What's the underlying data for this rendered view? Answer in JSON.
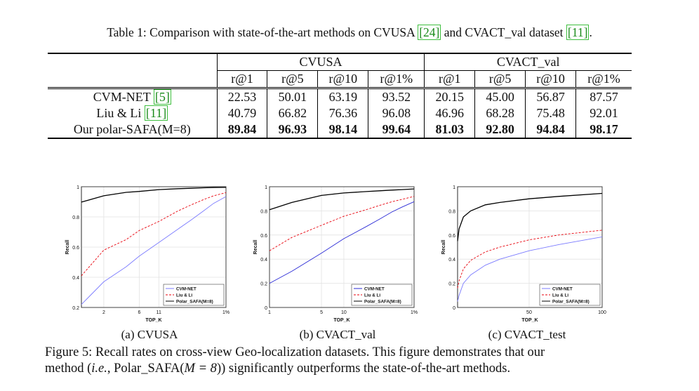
{
  "table": {
    "caption_prefix": "Table 1:",
    "caption_text_a": "Comparison with state-of-the-art methods on CVUSA ",
    "caption_cite_a": "[24]",
    "caption_text_b": " and CVACT_val dataset ",
    "caption_cite_b": "[11]",
    "caption_text_c": ".",
    "groups": [
      "CVUSA",
      "CVACT_val"
    ],
    "columns": [
      "r@1",
      "r@5",
      "r@10",
      "r@1%",
      "r@1",
      "r@5",
      "r@10",
      "r@1%"
    ],
    "rows": [
      {
        "method": "CVM-NET ",
        "cite": "[5]",
        "values": [
          "22.53",
          "50.01",
          "63.19",
          "93.52",
          "20.15",
          "45.00",
          "56.87",
          "87.57"
        ],
        "bold": false
      },
      {
        "method": "Liu & Li ",
        "cite": "[11]",
        "values": [
          "40.79",
          "66.82",
          "76.36",
          "96.08",
          "46.96",
          "68.28",
          "75.48",
          "92.01"
        ],
        "bold": false
      },
      {
        "method": "Our polar-SAFA(M=8)",
        "cite": "",
        "values": [
          "89.84",
          "96.93",
          "98.14",
          "99.64",
          "81.03",
          "92.80",
          "94.84",
          "98.17"
        ],
        "bold": true
      }
    ]
  },
  "chart_data": [
    {
      "type": "line",
      "title": "",
      "subcaption": "(a) CVUSA",
      "xlabel": "TOP_K",
      "ylabel": "Recall",
      "xticks": [
        "2",
        "6",
        "11",
        "1%"
      ],
      "yticks": [
        "0.2",
        "0.4",
        "0.6",
        "0.8",
        "1"
      ],
      "ylim": [
        0.2,
        1.0
      ],
      "xlim": [
        1,
        88
      ],
      "grid": true,
      "legend_position": "bottom-right",
      "series": [
        {
          "name": "CVM-NET",
          "color": "#7b7bff",
          "dash": "solid",
          "x": [
            1,
            2,
            4,
            6,
            11,
            20,
            30,
            44,
            60,
            88
          ],
          "y": [
            0.22,
            0.37,
            0.47,
            0.54,
            0.63,
            0.72,
            0.78,
            0.84,
            0.89,
            0.935
          ]
        },
        {
          "name": "Liu & Li",
          "color": "#e8000b",
          "dash": "dashed",
          "x": [
            1,
            2,
            4,
            6,
            11,
            20,
            30,
            44,
            60,
            88
          ],
          "y": [
            0.41,
            0.58,
            0.65,
            0.71,
            0.77,
            0.84,
            0.88,
            0.915,
            0.94,
            0.961
          ]
        },
        {
          "name": "Polar_SAFA(M=8)",
          "color": "#000000",
          "dash": "solid",
          "x": [
            1,
            2,
            4,
            6,
            11,
            20,
            30,
            44,
            60,
            88
          ],
          "y": [
            0.898,
            0.94,
            0.963,
            0.969,
            0.981,
            0.987,
            0.99,
            0.993,
            0.995,
            0.996
          ]
        }
      ]
    },
    {
      "type": "line",
      "title": "",
      "subcaption": "(b) CVACT_val",
      "xlabel": "TOP_K",
      "ylabel": "Recall",
      "xticks": [
        "1",
        "5",
        "10",
        "1%"
      ],
      "yticks": [
        "0",
        "0.2",
        "0.4",
        "0.6",
        "0.8",
        "1"
      ],
      "ylim": [
        0,
        1.0
      ],
      "xlim": [
        1,
        88
      ],
      "grid": true,
      "legend_position": "bottom-right",
      "series": [
        {
          "name": "CVM-NET",
          "color": "#2b2bd6",
          "dash": "solid",
          "x": [
            1,
            2,
            5,
            10,
            20,
            30,
            44,
            60,
            88
          ],
          "y": [
            0.2,
            0.3,
            0.45,
            0.57,
            0.67,
            0.73,
            0.79,
            0.83,
            0.876
          ]
        },
        {
          "name": "Liu & Li",
          "color": "#e8000b",
          "dash": "dashed",
          "x": [
            1,
            2,
            5,
            10,
            20,
            30,
            44,
            60,
            88
          ],
          "y": [
            0.47,
            0.58,
            0.68,
            0.755,
            0.81,
            0.845,
            0.875,
            0.895,
            0.92
          ]
        },
        {
          "name": "Polar_SAFA(M=8)",
          "color": "#000000",
          "dash": "solid",
          "x": [
            1,
            2,
            5,
            10,
            20,
            30,
            44,
            60,
            88
          ],
          "y": [
            0.81,
            0.87,
            0.928,
            0.948,
            0.96,
            0.966,
            0.972,
            0.976,
            0.982
          ]
        }
      ]
    },
    {
      "type": "line",
      "title": "",
      "subcaption": "(c) CVACT_test",
      "xlabel": "TOP_K",
      "ylabel": "Recall",
      "xticks": [
        "50",
        "100"
      ],
      "yticks": [
        "0",
        "0.2",
        "0.4",
        "0.6",
        "0.8",
        "1"
      ],
      "ylim": [
        0,
        1.0
      ],
      "xlim": [
        1,
        100
      ],
      "grid": true,
      "legend_position": "bottom-right",
      "series": [
        {
          "name": "CVM-NET",
          "color": "#7b7bff",
          "dash": "solid",
          "x": [
            1,
            2,
            5,
            10,
            20,
            30,
            50,
            70,
            100
          ],
          "y": [
            0.05,
            0.1,
            0.2,
            0.27,
            0.35,
            0.4,
            0.47,
            0.52,
            0.585
          ]
        },
        {
          "name": "Liu & Li",
          "color": "#e8000b",
          "dash": "dashed",
          "x": [
            1,
            2,
            5,
            10,
            20,
            30,
            50,
            70,
            100
          ],
          "y": [
            0.16,
            0.22,
            0.32,
            0.39,
            0.46,
            0.5,
            0.56,
            0.6,
            0.64
          ]
        },
        {
          "name": "Polar_SAFA(M=8)",
          "color": "#000000",
          "dash": "solid",
          "x": [
            1,
            2,
            5,
            10,
            20,
            30,
            50,
            70,
            100
          ],
          "y": [
            0.55,
            0.65,
            0.75,
            0.8,
            0.85,
            0.87,
            0.9,
            0.92,
            0.945
          ]
        }
      ]
    }
  ],
  "figure": {
    "caption_line1": "Figure 5: Recall rates on cross-view Geo-localization datasets. This figure demonstrates that our",
    "caption_line2_a": "method (",
    "caption_line2_ie": "i.e.",
    "caption_line2_b": ", Polar_SAFA(",
    "caption_line2_m": "M = 8",
    "caption_line2_c": ")) significantly outperforms the state-of-the-art methods."
  }
}
